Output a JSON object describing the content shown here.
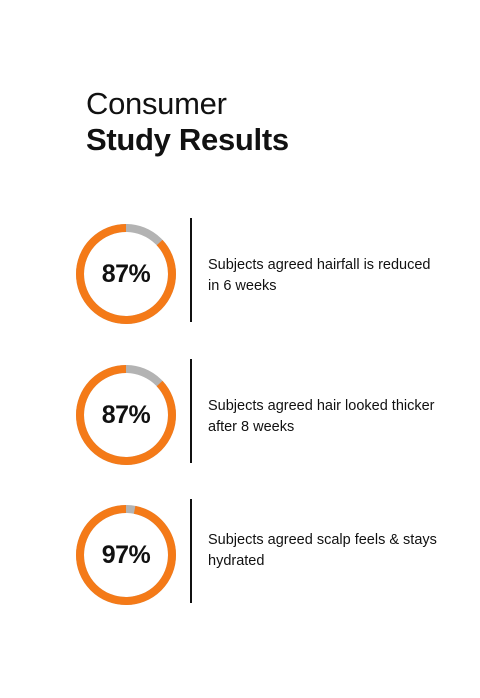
{
  "header": {
    "title_line1": "Consumer",
    "title_line2": "Study Results"
  },
  "colors": {
    "accent": "#f47a18",
    "track": "#b3b3b3",
    "text": "#111111",
    "divider": "#111111"
  },
  "chart_data": {
    "type": "pie",
    "style": "donut",
    "items": [
      {
        "value": 87,
        "label": "87%",
        "caption": "Subjects agreed hairfall is reduced in 6 weeks"
      },
      {
        "value": 87,
        "label": "87%",
        "caption": "Subjects agreed hair looked thicker after 8 weeks"
      },
      {
        "value": 97,
        "label": "97%",
        "caption": "Subjects agreed scalp feels & stays hydrated"
      }
    ]
  }
}
